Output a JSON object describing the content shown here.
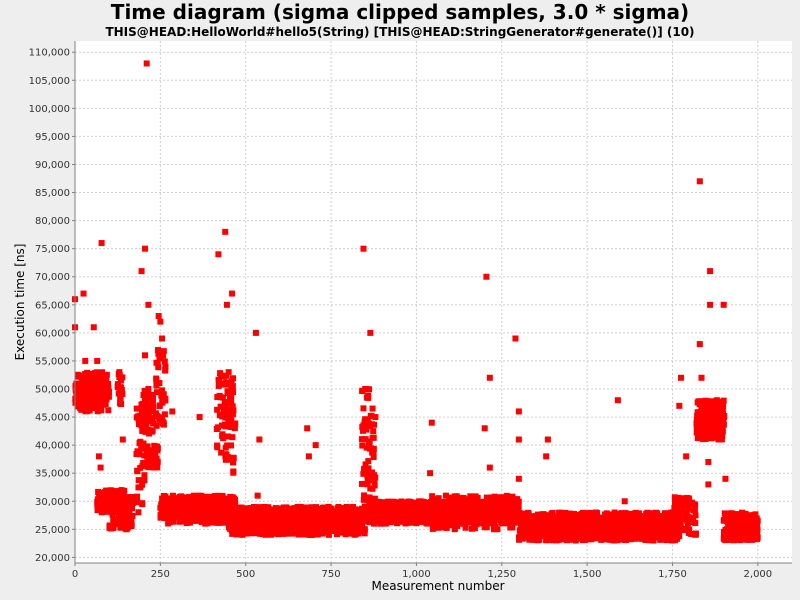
{
  "chart_data": {
    "type": "scatter",
    "title": "Time diagram (sigma clipped samples, 3.0 * sigma)",
    "subtitle": "THIS@HEAD:HelloWorld#hello5(String) [THIS@HEAD:StringGenerator#generate()] (10)",
    "xlabel": "Measurement number",
    "ylabel": "Execution time [ns]",
    "xlim": [
      0,
      2100
    ],
    "ylim": [
      19000,
      112000
    ],
    "x_ticks": [
      0,
      250,
      500,
      750,
      1000,
      1250,
      1500,
      1750,
      2000
    ],
    "x_tick_labels": [
      "0",
      "250",
      "500",
      "750",
      "1,000",
      "1,250",
      "1,500",
      "1,750",
      "2,000"
    ],
    "y_ticks": [
      20000,
      25000,
      30000,
      35000,
      40000,
      45000,
      50000,
      55000,
      60000,
      65000,
      70000,
      75000,
      80000,
      85000,
      90000,
      95000,
      100000,
      105000,
      110000
    ],
    "y_tick_labels": [
      "20,000",
      "25,000",
      "30,000",
      "35,000",
      "40,000",
      "45,000",
      "50,000",
      "55,000",
      "60,000",
      "65,000",
      "70,000",
      "75,000",
      "80,000",
      "85,000",
      "90,000",
      "95,000",
      "100,000",
      "105,000",
      "110,000"
    ],
    "grid": true,
    "series_color": "#ff0000",
    "outliers": [
      [
        0,
        66000
      ],
      [
        0,
        61000
      ],
      [
        25,
        67000
      ],
      [
        30,
        55000
      ],
      [
        55,
        61000
      ],
      [
        65,
        55000
      ],
      [
        70,
        38000
      ],
      [
        75,
        36000
      ],
      [
        78,
        76000
      ],
      [
        130,
        53000
      ],
      [
        140,
        41000
      ],
      [
        195,
        71000
      ],
      [
        205,
        75000
      ],
      [
        210,
        108000
      ],
      [
        215,
        65000
      ],
      [
        205,
        56000
      ],
      [
        215,
        50000
      ],
      [
        245,
        63000
      ],
      [
        250,
        62000
      ],
      [
        255,
        59000
      ],
      [
        265,
        54000
      ],
      [
        285,
        46000
      ],
      [
        365,
        45000
      ],
      [
        420,
        74000
      ],
      [
        425,
        51000
      ],
      [
        440,
        78000
      ],
      [
        445,
        65000
      ],
      [
        450,
        53000
      ],
      [
        460,
        67000
      ],
      [
        530,
        60000
      ],
      [
        540,
        41000
      ],
      [
        535,
        31000
      ],
      [
        680,
        43000
      ],
      [
        685,
        38000
      ],
      [
        705,
        40000
      ],
      [
        845,
        75000
      ],
      [
        850,
        50000
      ],
      [
        860,
        40000
      ],
      [
        865,
        60000
      ],
      [
        880,
        45000
      ],
      [
        1040,
        35000
      ],
      [
        1045,
        44000
      ],
      [
        1200,
        43000
      ],
      [
        1205,
        70000
      ],
      [
        1215,
        52000
      ],
      [
        1215,
        36000
      ],
      [
        1290,
        59000
      ],
      [
        1300,
        46000
      ],
      [
        1300,
        41000
      ],
      [
        1300,
        34000
      ],
      [
        1380,
        38000
      ],
      [
        1385,
        41000
      ],
      [
        1590,
        48000
      ],
      [
        1610,
        30000
      ],
      [
        1770,
        47000
      ],
      [
        1775,
        52000
      ],
      [
        1790,
        38000
      ],
      [
        1830,
        87000
      ],
      [
        1830,
        58000
      ],
      [
        1835,
        52000
      ],
      [
        1860,
        71000
      ],
      [
        1860,
        65000
      ],
      [
        1855,
        37000
      ],
      [
        1855,
        33000
      ],
      [
        1880,
        48000
      ],
      [
        1900,
        65000
      ],
      [
        1905,
        34000
      ]
    ],
    "segments": [
      [
        0,
        100,
        46000,
        53000,
        140
      ],
      [
        0,
        100,
        47000,
        51000,
        80
      ],
      [
        65,
        145,
        28000,
        32000,
        170
      ],
      [
        100,
        170,
        25000,
        31000,
        90
      ],
      [
        125,
        140,
        47000,
        53000,
        20
      ],
      [
        180,
        205,
        28000,
        48000,
        40
      ],
      [
        195,
        230,
        42000,
        50000,
        50
      ],
      [
        210,
        245,
        36000,
        40000,
        50
      ],
      [
        235,
        265,
        43000,
        57000,
        40
      ],
      [
        250,
        470,
        27000,
        31000,
        400
      ],
      [
        260,
        460,
        26000,
        30000,
        250
      ],
      [
        415,
        465,
        35000,
        53000,
        60
      ],
      [
        430,
        470,
        43000,
        48000,
        30
      ],
      [
        450,
        850,
        24000,
        29000,
        700
      ],
      [
        470,
        850,
        25000,
        28000,
        350
      ],
      [
        840,
        880,
        28000,
        50000,
        70
      ],
      [
        860,
        1300,
        26000,
        30000,
        800
      ],
      [
        880,
        1300,
        27000,
        29000,
        500
      ],
      [
        1040,
        1300,
        25000,
        31000,
        200
      ],
      [
        1300,
        1770,
        23000,
        28000,
        850
      ],
      [
        1330,
        1770,
        24000,
        27000,
        400
      ],
      [
        1750,
        1820,
        24000,
        31000,
        80
      ],
      [
        1820,
        1900,
        41000,
        48000,
        180
      ],
      [
        1820,
        1905,
        42000,
        46000,
        90
      ],
      [
        1900,
        2000,
        23000,
        28000,
        200
      ],
      [
        1920,
        2000,
        24000,
        27000,
        100
      ]
    ]
  }
}
